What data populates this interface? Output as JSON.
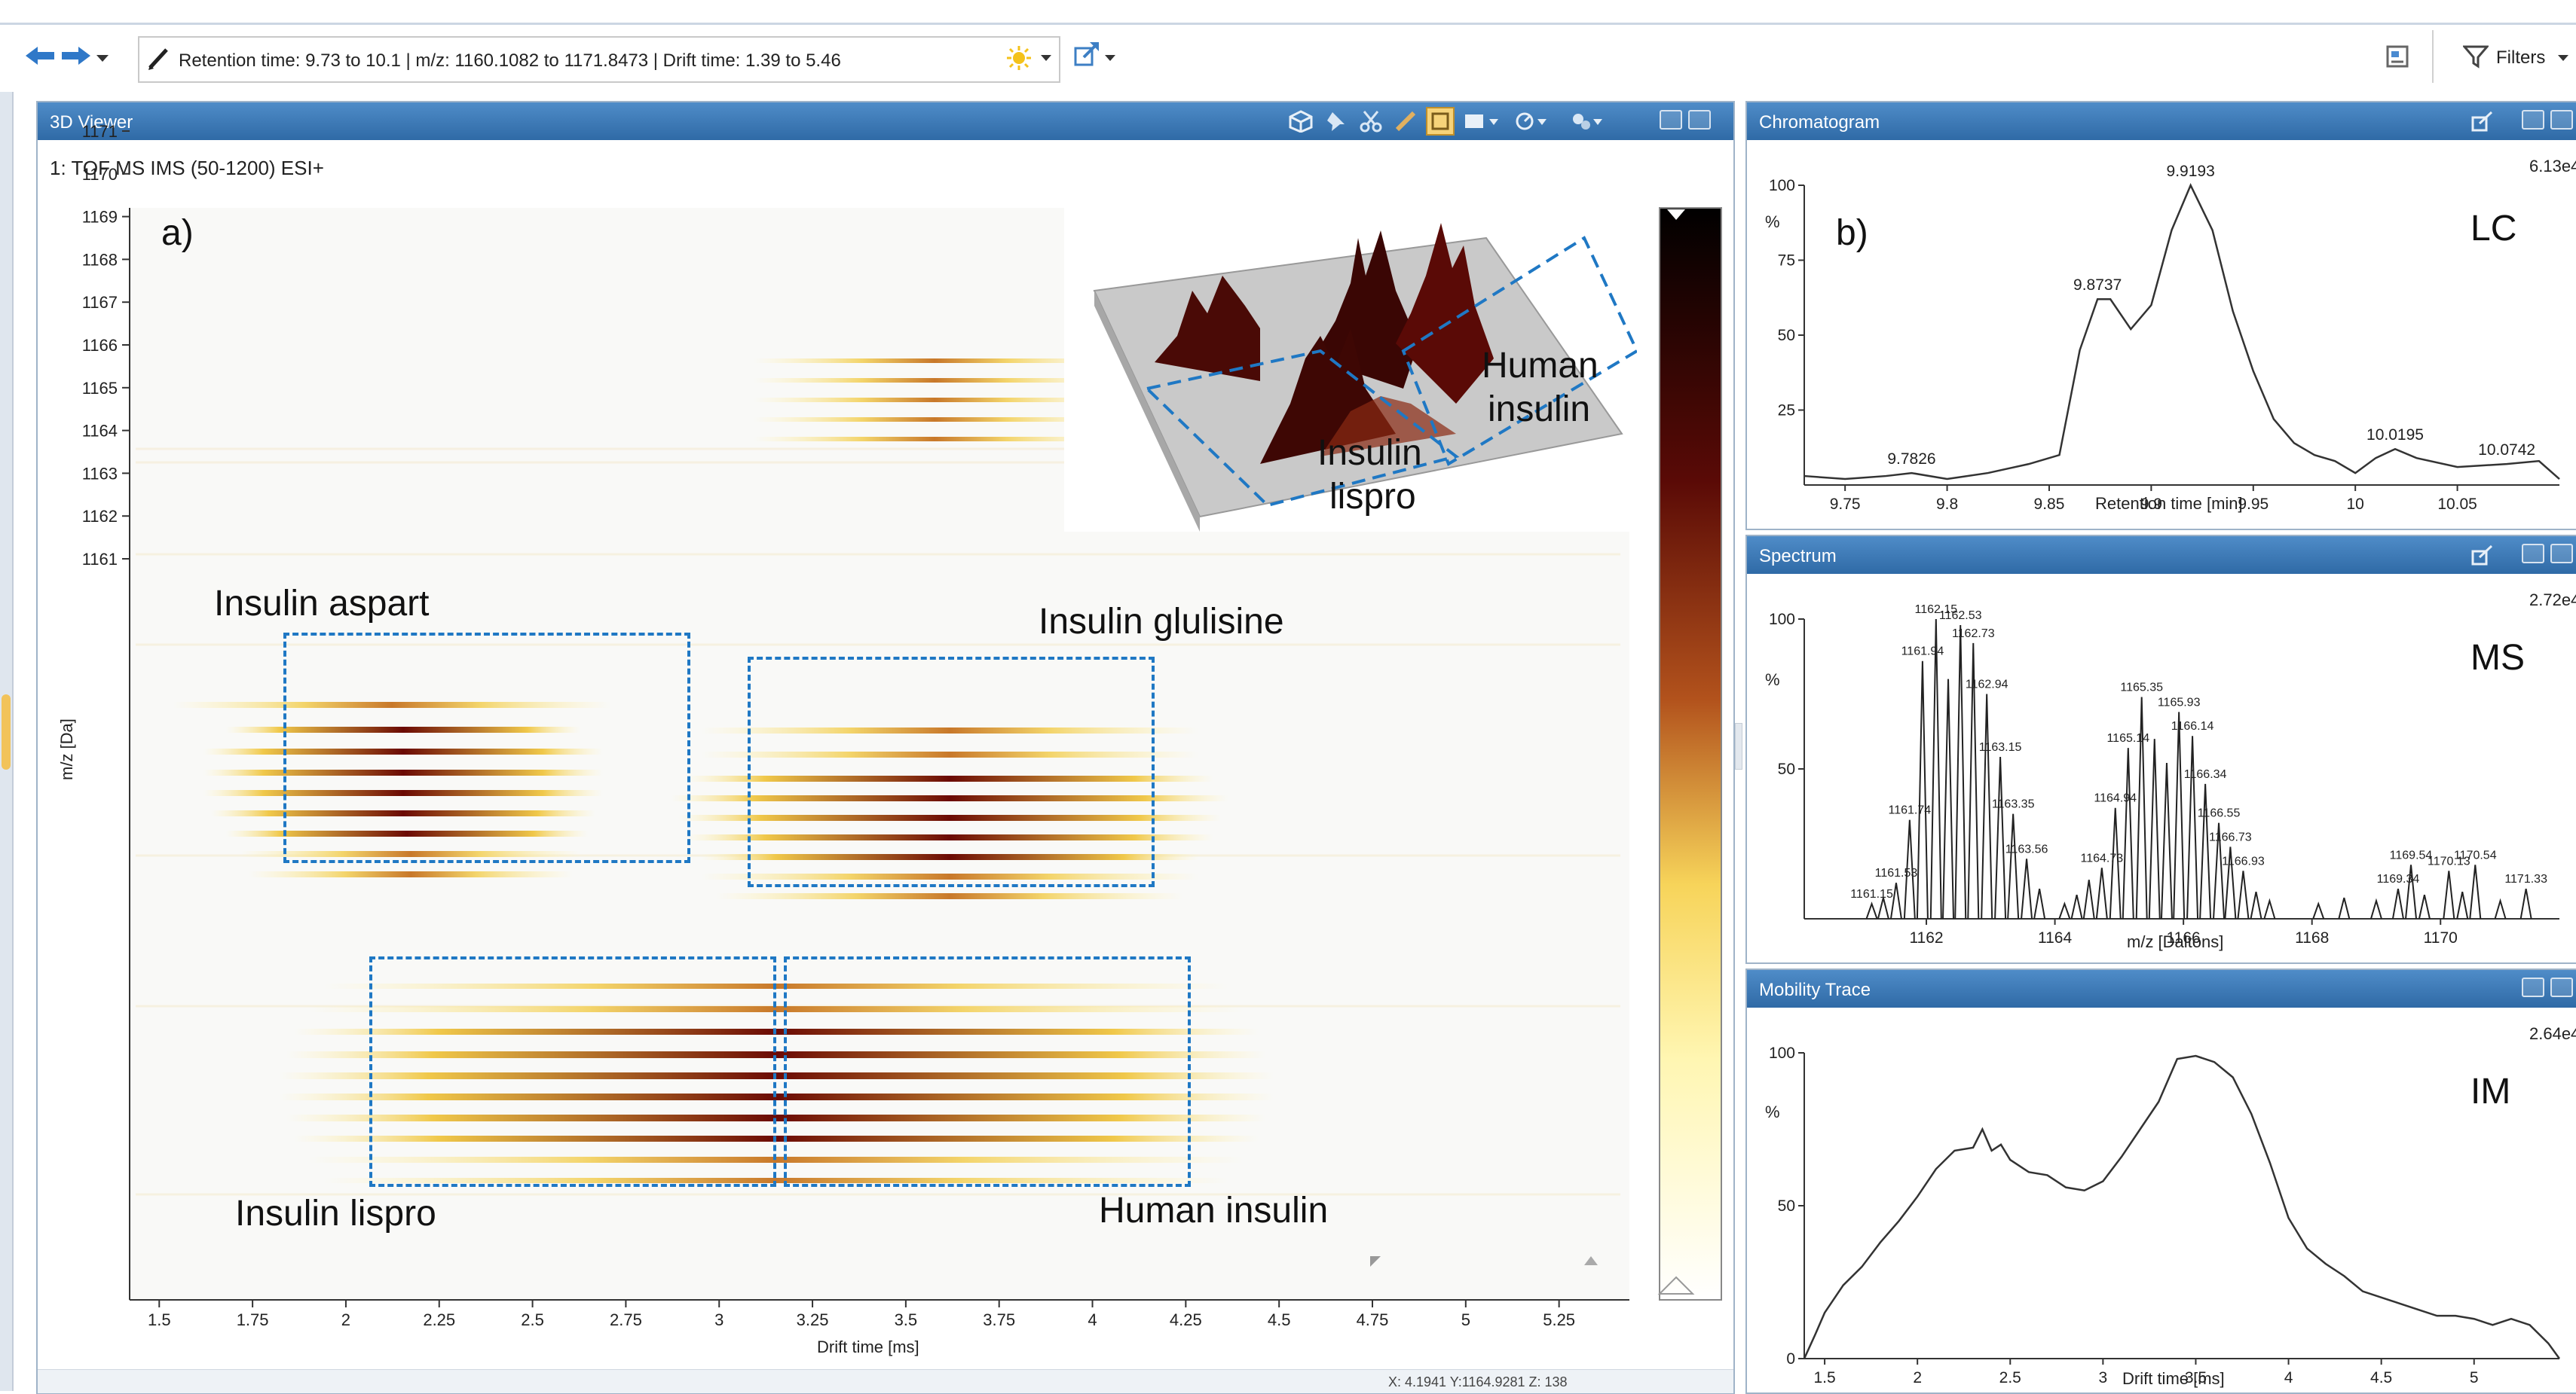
{
  "toolbar": {
    "filter_text": "Retention time: 9.73 to 10.1 | m/z: 1160.1082 to 1171.8473 | Drift time: 1.39 to 5.46",
    "filters_label": "Filters"
  },
  "viewer": {
    "title": "3D Viewer",
    "scan_label": "1: TOF MS IMS (50-1200) ESI+",
    "panel_label": "a)",
    "y_axis_label": "m/z [Da]",
    "x_axis_label": "Drift time [ms]",
    "y_ticks": [
      "1171",
      "1170",
      "1169",
      "1168",
      "1167",
      "1166",
      "1165",
      "1164",
      "1163",
      "1162",
      "1161"
    ],
    "x_ticks": [
      "1.5",
      "1.75",
      "2",
      "2.25",
      "2.5",
      "2.75",
      "3",
      "3.25",
      "3.5",
      "3.75",
      "4",
      "4.25",
      "4.5",
      "4.75",
      "5",
      "5.25"
    ],
    "annotations": {
      "aspart": "Insulin aspart",
      "glulisine": "Insulin glulisine",
      "lispro": "Insulin lispro",
      "human": "Human insulin",
      "inset_human_1": "Human",
      "inset_human_2": "insulin",
      "inset_lispro_1": "Insulin",
      "inset_lispro_2": "lispro"
    },
    "status": "X: 4.1941  Y:1164.9281  Z: 138"
  },
  "chromatogram": {
    "title": "Chromatogram",
    "panel_label": "b)",
    "tag": "LC",
    "intensity": "6.13e4",
    "y_unit": "%",
    "x_axis_label": "Retention time [min]",
    "x_ticks": [
      "9.75",
      "9.8",
      "9.85",
      "9.9",
      "9.95",
      "10",
      "10.05"
    ],
    "y_ticks": [
      "100",
      "75",
      "50",
      "25"
    ],
    "peak_labels": [
      "9.9193",
      "9.8737",
      "9.7826",
      "10.0195",
      "10.0742"
    ]
  },
  "spectrum": {
    "title": "Spectrum",
    "tag": "MS",
    "intensity": "2.72e4",
    "y_unit": "%",
    "x_axis_label": "m/z [Daltons]",
    "x_ticks": [
      "1162",
      "1164",
      "1166",
      "1168",
      "1170"
    ],
    "y_ticks": [
      "100",
      "50"
    ],
    "peak_labels": [
      "1162.15",
      "1162.53",
      "1162.73",
      "1161.94",
      "1162.94",
      "1163.15",
      "1161.74",
      "1163.35",
      "1161.53",
      "1163.56",
      "1161.15",
      "1164.73",
      "1165.35",
      "1165.93",
      "1165.14",
      "1166.14",
      "1166.34",
      "1164.94",
      "1166.55",
      "1166.73",
      "1166.93",
      "1169.54",
      "1170.54",
      "1170.13",
      "1169.34",
      "1171.33"
    ]
  },
  "mobility": {
    "title": "Mobility Trace",
    "tag": "IM",
    "intensity": "2.64e4",
    "y_unit": "%",
    "x_axis_label": "Drift time [ms]",
    "x_ticks": [
      "1.5",
      "2",
      "2.5",
      "3",
      "3.5",
      "4",
      "4.5",
      "5"
    ],
    "y_ticks": [
      "100",
      "50",
      "0"
    ]
  },
  "chart_data": [
    {
      "type": "line",
      "title": "Chromatogram",
      "xlabel": "Retention time [min]",
      "ylabel": "%",
      "xlim": [
        9.73,
        10.1
      ],
      "ylim": [
        0,
        100
      ],
      "x": [
        9.73,
        9.75,
        9.77,
        9.7826,
        9.8,
        9.82,
        9.84,
        9.855,
        9.865,
        9.8737,
        9.88,
        9.89,
        9.9,
        9.91,
        9.9193,
        9.93,
        9.94,
        9.95,
        9.96,
        9.97,
        9.98,
        9.99,
        10.0,
        10.01,
        10.0195,
        10.03,
        10.05,
        10.0742,
        10.09,
        10.1
      ],
      "y": [
        3,
        2,
        3,
        4,
        2,
        4,
        7,
        10,
        45,
        62,
        62,
        52,
        60,
        85,
        100,
        85,
        58,
        38,
        22,
        14,
        10,
        8,
        4,
        9,
        12,
        9,
        6,
        7,
        8,
        2
      ]
    },
    {
      "type": "bar",
      "title": "Spectrum",
      "xlabel": "m/z [Daltons]",
      "ylabel": "%",
      "xlim": [
        1160.1,
        1171.85
      ],
      "ylim": [
        0,
        100
      ],
      "x": [
        1161.15,
        1161.33,
        1161.53,
        1161.74,
        1161.94,
        1162.15,
        1162.34,
        1162.53,
        1162.73,
        1162.94,
        1163.15,
        1163.35,
        1163.56,
        1163.76,
        1164.15,
        1164.34,
        1164.53,
        1164.73,
        1164.94,
        1165.14,
        1165.35,
        1165.55,
        1165.74,
        1165.93,
        1166.14,
        1166.34,
        1166.55,
        1166.73,
        1166.93,
        1167.13,
        1167.34,
        1168.1,
        1168.5,
        1169.0,
        1169.34,
        1169.54,
        1169.75,
        1170.13,
        1170.34,
        1170.54,
        1170.93,
        1171.33
      ],
      "values": [
        5,
        7,
        12,
        33,
        86,
        100,
        80,
        98,
        92,
        75,
        54,
        35,
        20,
        10,
        5,
        8,
        13,
        17,
        37,
        57,
        74,
        60,
        52,
        69,
        61,
        45,
        32,
        24,
        16,
        9,
        6,
        5,
        7,
        6,
        10,
        18,
        8,
        16,
        9,
        18,
        6,
        10
      ]
    },
    {
      "type": "line",
      "title": "Mobility Trace",
      "xlabel": "Drift time [ms]",
      "ylabel": "%",
      "xlim": [
        1.39,
        5.46
      ],
      "ylim": [
        0,
        100
      ],
      "x": [
        1.39,
        1.45,
        1.5,
        1.6,
        1.7,
        1.8,
        1.9,
        2.0,
        2.1,
        2.2,
        2.3,
        2.35,
        2.4,
        2.45,
        2.5,
        2.6,
        2.7,
        2.8,
        2.9,
        3.0,
        3.1,
        3.2,
        3.3,
        3.4,
        3.5,
        3.6,
        3.7,
        3.8,
        3.9,
        4.0,
        4.1,
        4.2,
        4.3,
        4.4,
        4.5,
        4.6,
        4.7,
        4.8,
        4.9,
        5.0,
        5.1,
        5.2,
        5.3,
        5.4,
        5.46
      ],
      "y": [
        0,
        8,
        15,
        24,
        30,
        38,
        45,
        53,
        62,
        68,
        69,
        75,
        68,
        70,
        65,
        61,
        60,
        56,
        55,
        58,
        66,
        75,
        84,
        98,
        99,
        97,
        92,
        80,
        64,
        46,
        36,
        31,
        27,
        22,
        20,
        18,
        16,
        14,
        14,
        13,
        11,
        13,
        11,
        5,
        0
      ]
    }
  ]
}
